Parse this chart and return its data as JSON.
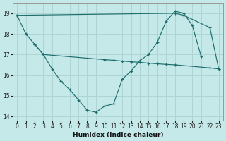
{
  "xlabel": "Humidex (Indice chaleur)",
  "bg_color": "#c5e8e8",
  "grid_color": "#aed4d4",
  "line_color": "#1e6e6e",
  "xlim": [
    -0.5,
    23.5
  ],
  "ylim": [
    13.8,
    19.5
  ],
  "xticks": [
    0,
    1,
    2,
    3,
    4,
    5,
    6,
    7,
    8,
    9,
    10,
    11,
    12,
    13,
    14,
    15,
    16,
    17,
    18,
    19,
    20,
    21,
    22,
    23
  ],
  "yticks": [
    14,
    15,
    16,
    17,
    18,
    19
  ],
  "line1_x": [
    0,
    1,
    2,
    3,
    4,
    5,
    6,
    7,
    8,
    9,
    10,
    11,
    12,
    13,
    14,
    15,
    16,
    17,
    18,
    19,
    20,
    21
  ],
  "line1_y": [
    18.9,
    18.0,
    17.5,
    17.0,
    16.3,
    15.7,
    15.3,
    14.8,
    14.3,
    14.2,
    14.5,
    14.6,
    15.8,
    16.2,
    16.7,
    17.0,
    17.6,
    18.6,
    19.1,
    19.0,
    18.4,
    16.9
  ],
  "line2_x": [
    0,
    18,
    19,
    22,
    23
  ],
  "line2_y": [
    18.9,
    19.0,
    18.9,
    18.3,
    16.3
  ],
  "line3_x": [
    2,
    3,
    10,
    11,
    12,
    13,
    14,
    15,
    16,
    17,
    18,
    22,
    23
  ],
  "line3_y": [
    17.5,
    17.0,
    16.75,
    16.72,
    16.68,
    16.65,
    16.62,
    16.58,
    16.55,
    16.52,
    16.5,
    16.35,
    16.3
  ]
}
